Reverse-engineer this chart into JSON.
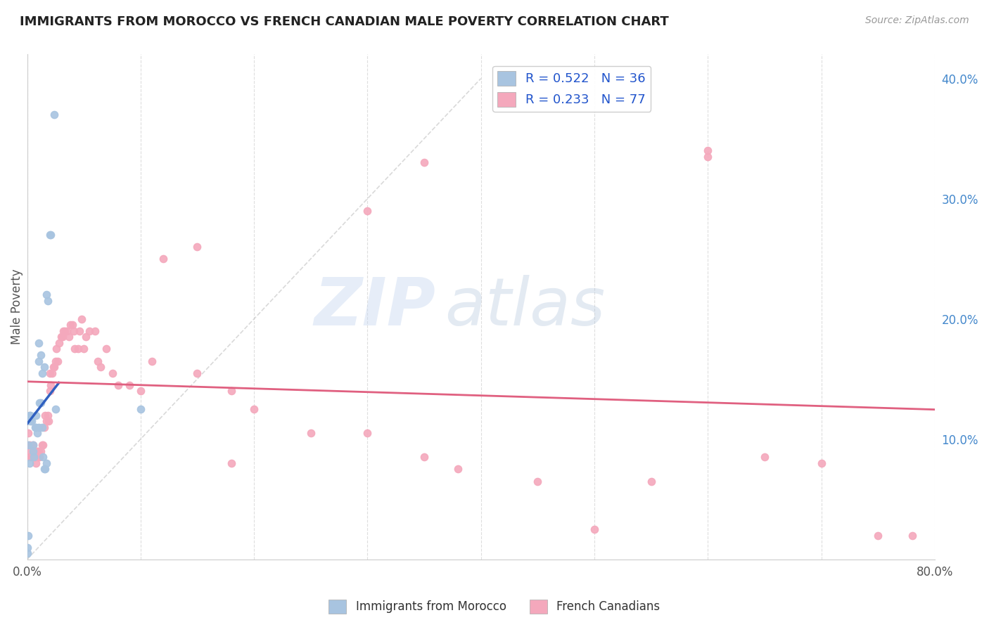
{
  "title": "IMMIGRANTS FROM MOROCCO VS FRENCH CANADIAN MALE POVERTY CORRELATION CHART",
  "source": "Source: ZipAtlas.com",
  "ylabel": "Male Poverty",
  "xlim": [
    0.0,
    0.8
  ],
  "ylim": [
    0.0,
    0.42
  ],
  "y_ticks_right": [
    0.1,
    0.2,
    0.3,
    0.4
  ],
  "y_tick_labels_right": [
    "10.0%",
    "20.0%",
    "30.0%",
    "40.0%"
  ],
  "morocco_R": 0.522,
  "morocco_N": 36,
  "french_R": 0.233,
  "french_N": 77,
  "morocco_color": "#a8c4e0",
  "french_color": "#f4a8bc",
  "morocco_line_color": "#3060c0",
  "french_line_color": "#e06080",
  "diagonal_color": "#c0c0c0",
  "background_color": "#ffffff",
  "grid_color": "#d0d0d0",
  "watermark_zip": "ZIP",
  "watermark_atlas": "atlas",
  "morocco_scatter_x": [
    0.0,
    0.001,
    0.001,
    0.002,
    0.002,
    0.003,
    0.003,
    0.004,
    0.005,
    0.005,
    0.006,
    0.007,
    0.008,
    0.008,
    0.009,
    0.01,
    0.01,
    0.01,
    0.011,
    0.012,
    0.012,
    0.013,
    0.013,
    0.014,
    0.015,
    0.015,
    0.016,
    0.017,
    0.017,
    0.018,
    0.02,
    0.021,
    0.024,
    0.025,
    0.1,
    0.0
  ],
  "morocco_scatter_y": [
    0.005,
    0.02,
    0.095,
    0.08,
    0.12,
    0.115,
    0.12,
    0.115,
    0.095,
    0.09,
    0.085,
    0.11,
    0.12,
    0.11,
    0.105,
    0.11,
    0.165,
    0.18,
    0.13,
    0.13,
    0.17,
    0.155,
    0.11,
    0.085,
    0.075,
    0.16,
    0.075,
    0.08,
    0.22,
    0.215,
    0.27,
    0.27,
    0.37,
    0.125,
    0.125,
    0.01
  ],
  "french_scatter_x": [
    0.001,
    0.002,
    0.003,
    0.004,
    0.005,
    0.006,
    0.007,
    0.008,
    0.009,
    0.01,
    0.01,
    0.011,
    0.012,
    0.013,
    0.014,
    0.015,
    0.016,
    0.017,
    0.018,
    0.019,
    0.02,
    0.02,
    0.021,
    0.022,
    0.023,
    0.024,
    0.025,
    0.026,
    0.027,
    0.028,
    0.03,
    0.031,
    0.032,
    0.033,
    0.035,
    0.037,
    0.038,
    0.04,
    0.041,
    0.042,
    0.045,
    0.046,
    0.048,
    0.05,
    0.052,
    0.055,
    0.06,
    0.062,
    0.065,
    0.07,
    0.075,
    0.08,
    0.09,
    0.1,
    0.11,
    0.15,
    0.18,
    0.2,
    0.25,
    0.3,
    0.35,
    0.38,
    0.45,
    0.5,
    0.55,
    0.6,
    0.65,
    0.7,
    0.75,
    0.78,
    0.3,
    0.15,
    0.12,
    0.6,
    0.35,
    0.18,
    0.003
  ],
  "french_scatter_y": [
    0.105,
    0.095,
    0.09,
    0.085,
    0.095,
    0.09,
    0.085,
    0.08,
    0.09,
    0.09,
    0.085,
    0.085,
    0.09,
    0.095,
    0.095,
    0.11,
    0.12,
    0.115,
    0.12,
    0.115,
    0.14,
    0.155,
    0.145,
    0.155,
    0.16,
    0.16,
    0.165,
    0.175,
    0.165,
    0.18,
    0.185,
    0.185,
    0.19,
    0.19,
    0.19,
    0.185,
    0.195,
    0.195,
    0.19,
    0.175,
    0.175,
    0.19,
    0.2,
    0.175,
    0.185,
    0.19,
    0.19,
    0.165,
    0.16,
    0.175,
    0.155,
    0.145,
    0.145,
    0.14,
    0.165,
    0.155,
    0.14,
    0.125,
    0.105,
    0.105,
    0.085,
    0.075,
    0.065,
    0.025,
    0.065,
    0.335,
    0.085,
    0.08,
    0.02,
    0.02,
    0.29,
    0.26,
    0.25,
    0.34,
    0.33,
    0.08,
    0.085
  ]
}
